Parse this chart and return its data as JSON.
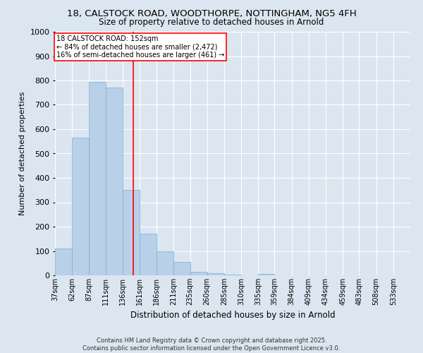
{
  "title_line1": "18, CALSTOCK ROAD, WOODTHORPE, NOTTINGHAM, NG5 4FH",
  "title_line2": "Size of property relative to detached houses in Arnold",
  "xlabel": "Distribution of detached houses by size in Arnold",
  "ylabel": "Number of detached properties",
  "bar_color": "#b8d0e8",
  "bar_edge_color": "#7aadd0",
  "background_color": "#dce6f0",
  "grid_color": "#ffffff",
  "categories": [
    "37sqm",
    "62sqm",
    "87sqm",
    "111sqm",
    "136sqm",
    "161sqm",
    "186sqm",
    "211sqm",
    "235sqm",
    "260sqm",
    "285sqm",
    "310sqm",
    "335sqm",
    "359sqm",
    "384sqm",
    "409sqm",
    "434sqm",
    "459sqm",
    "483sqm",
    "508sqm",
    "533sqm"
  ],
  "bar_heights": [
    110,
    565,
    795,
    770,
    350,
    170,
    100,
    55,
    15,
    8,
    2,
    0,
    5,
    0,
    0,
    0,
    0,
    0,
    0,
    0,
    0
  ],
  "bin_edges": [
    37,
    62,
    87,
    111,
    136,
    161,
    186,
    211,
    235,
    260,
    285,
    310,
    335,
    359,
    384,
    409,
    434,
    459,
    483,
    508,
    533,
    558
  ],
  "vline_x": 152,
  "annotation_text_line1": "18 CALSTOCK ROAD: 152sqm",
  "annotation_text_line2": "← 84% of detached houses are smaller (2,472)",
  "annotation_text_line3": "16% of semi-detached houses are larger (461) →",
  "ylim": [
    0,
    1000
  ],
  "yticks": [
    0,
    100,
    200,
    300,
    400,
    500,
    600,
    700,
    800,
    900,
    1000
  ],
  "footer_line1": "Contains HM Land Registry data © Crown copyright and database right 2025.",
  "footer_line2": "Contains public sector information licensed under the Open Government Licence v3.0."
}
